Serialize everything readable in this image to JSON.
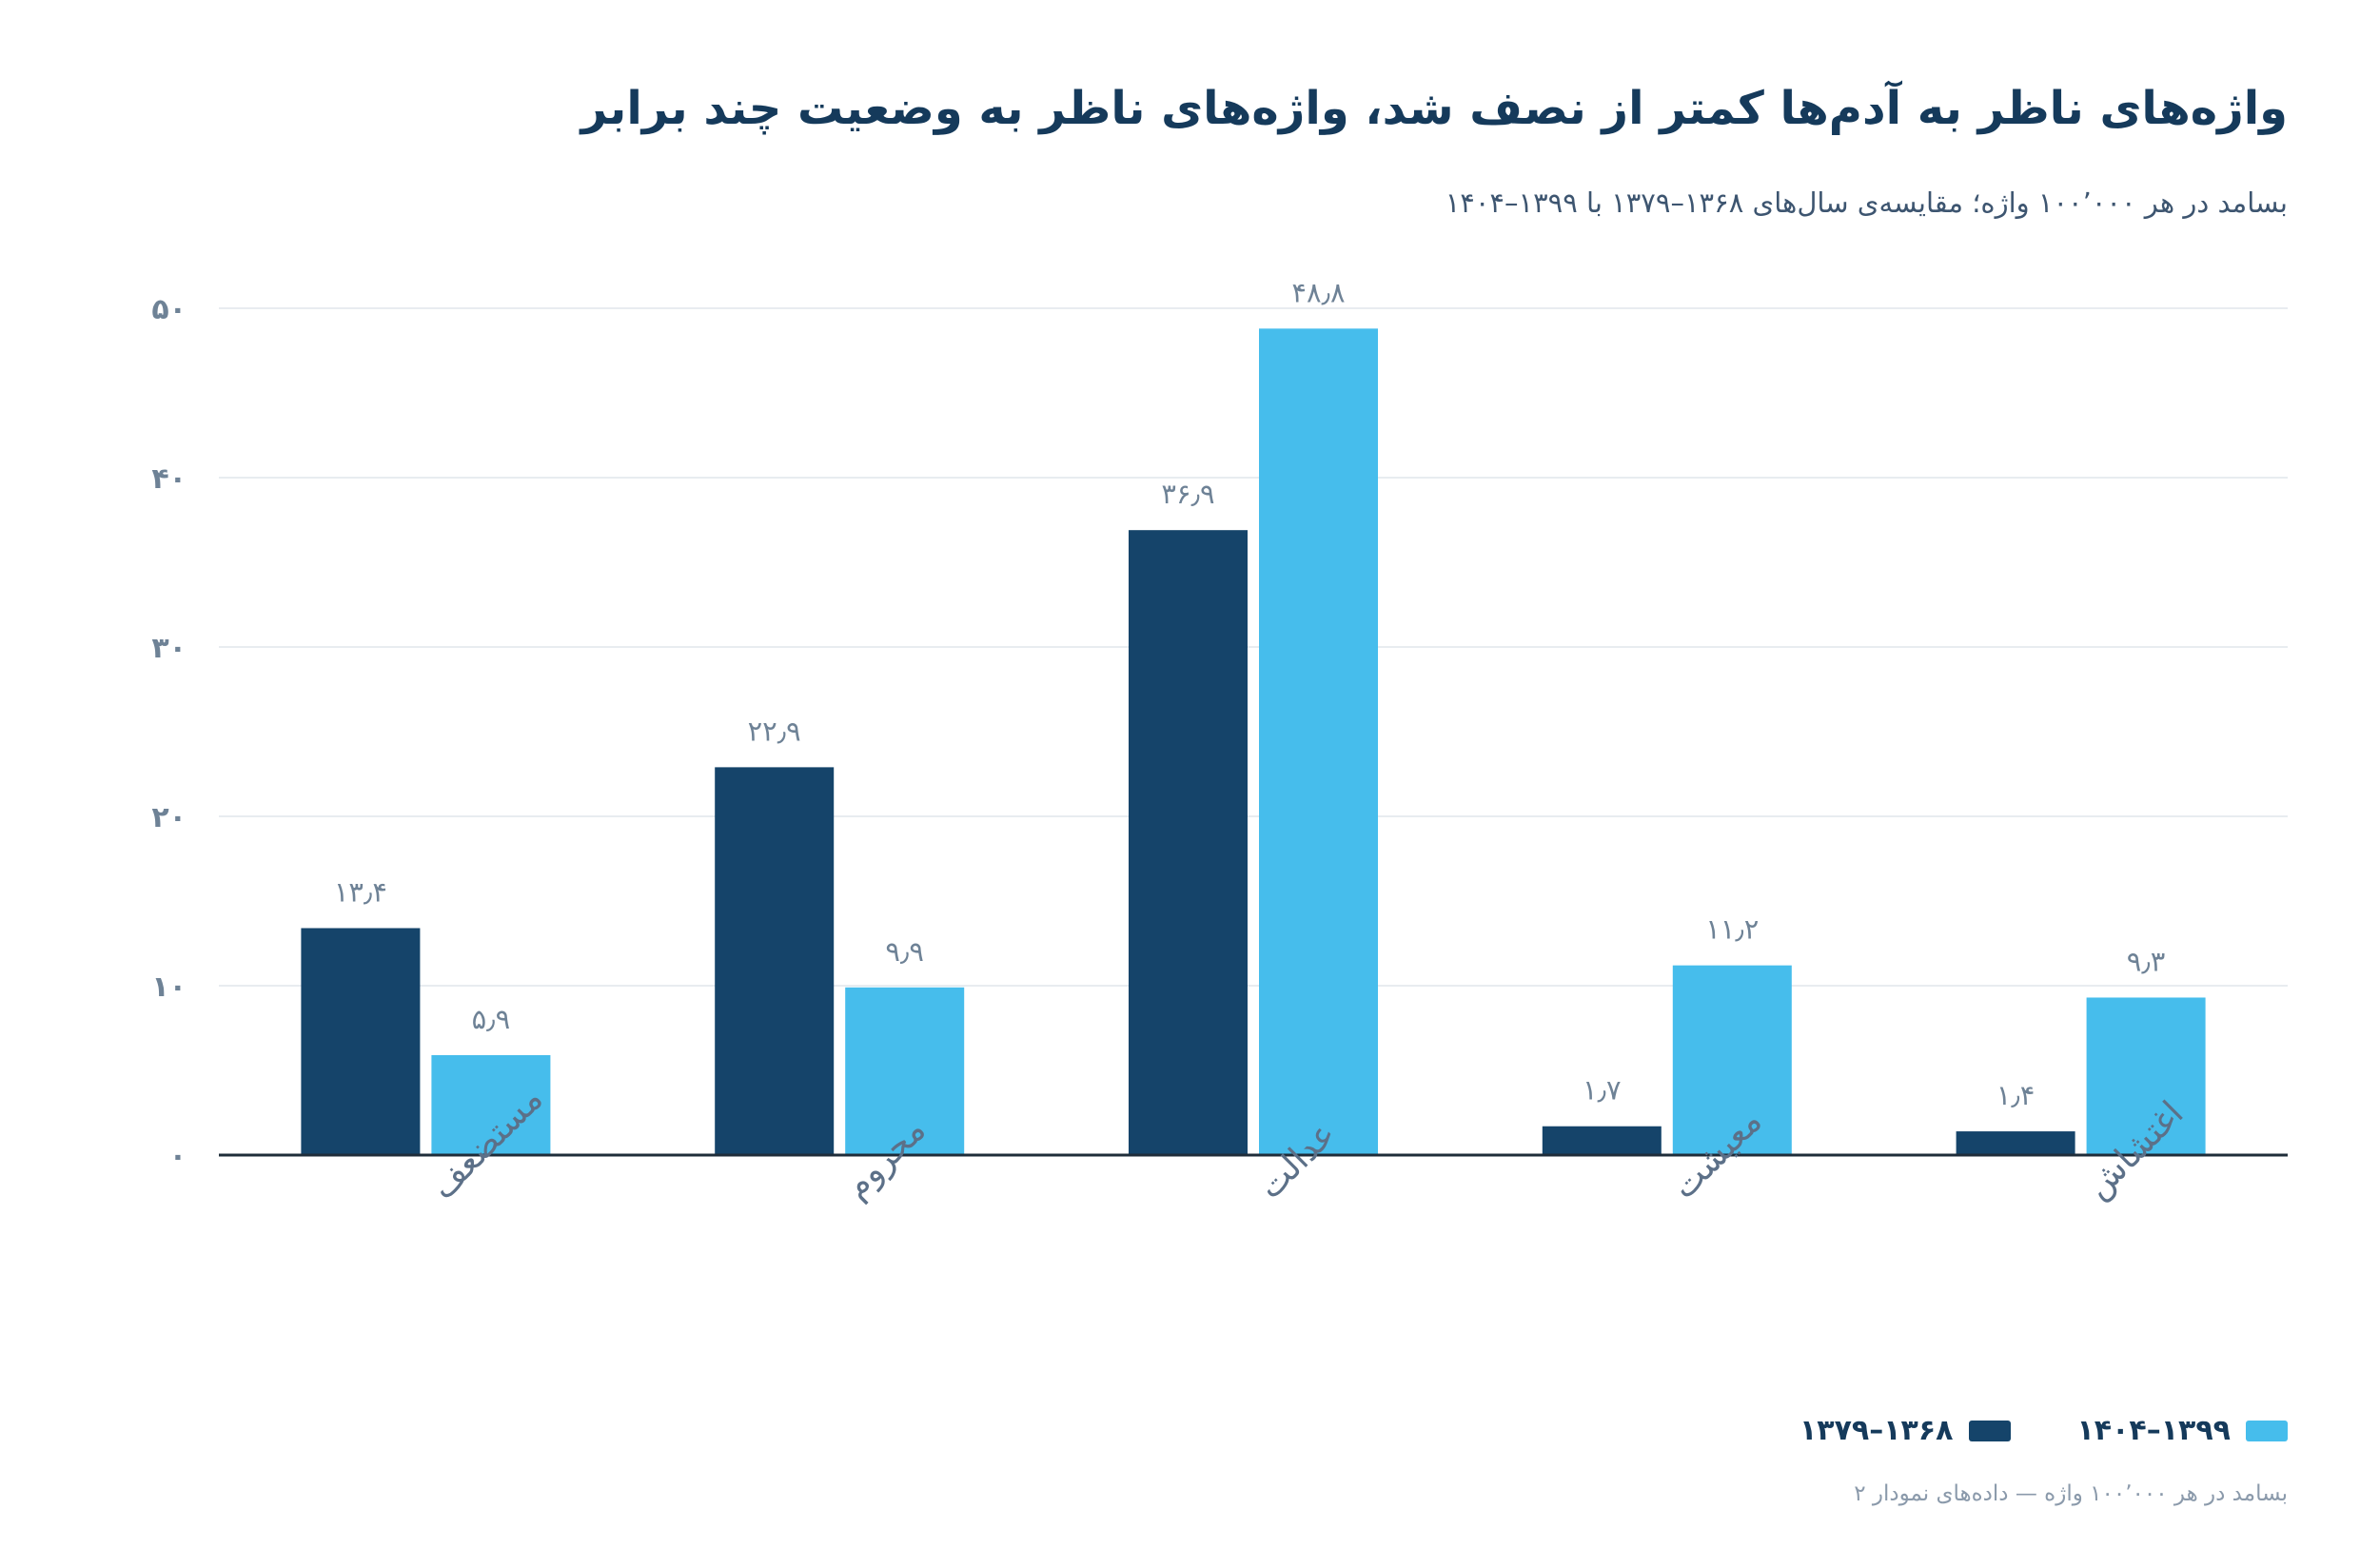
{
  "title": "واژه‌های ناظر به آدم‌ها کمتر از نصف شد، واژه‌های ناظر به وضعیت چند برابر",
  "subtitle": "بسامد در هر ۱۰۰٬۰۰۰ واژه؛ مقایسه‌ی سال‌های ۱۳۶۸–۱۳۷۹ با ۱۳۹۹–۱۴۰۴",
  "source_note": "بسامد در هر ۱۰۰٬۰۰۰ واژه — داده‌های نمودار ۲",
  "colors": {
    "series_dark": "#15446a",
    "series_light": "#46bdec",
    "gridline": "#e8ecf0",
    "baseline": "#1f2d3a"
  },
  "chart_data": {
    "type": "bar",
    "title": "واژه‌های ناظر به آدم‌ها کمتر از نصف شد، واژه‌های ناظر به وضعیت چند برابر",
    "subtitle": "بسامد در هر ۱۰۰٬۰۰۰ واژه؛ مقایسه‌ی سال‌های ۱۳۶۸–۱۳۷۹ با ۱۳۹۹–۱۴۰۴",
    "xlabel": "",
    "ylabel": "",
    "categories": [
      "مستضعف",
      "محروم",
      "عدالت",
      "معیشت",
      "اغتشاش"
    ],
    "series": [
      {
        "name": "۱۳۶۸–۱۳۷۹",
        "color": "#15446a",
        "values": [
          13.4,
          22.9,
          36.9,
          1.7,
          1.4
        ],
        "value_labels": [
          "۱۳٫۴",
          "۲۲٫۹",
          "۳۶٫۹",
          "۱٫۷",
          "۱٫۴"
        ]
      },
      {
        "name": "۱۳۹۹–۱۴۰۴",
        "color": "#46bdec",
        "values": [
          5.9,
          9.9,
          48.8,
          11.2,
          9.3
        ],
        "value_labels": [
          "۵٫۹",
          "۹٫۹",
          "۴۸٫۸",
          "۱۱٫۲",
          "۹٫۳"
        ]
      }
    ],
    "ylim": [
      0,
      50
    ],
    "yticks": [
      0,
      10,
      20,
      30,
      40,
      50
    ],
    "ytick_labels": [
      "۰",
      "۱۰",
      "۲۰",
      "۳۰",
      "۴۰",
      "۵۰"
    ],
    "grid": true,
    "legend": {
      "placement": "bottom-right",
      "order": [
        "۱۳۹۹–۱۴۰۴",
        "۱۳۶۸–۱۳۷۹"
      ]
    }
  }
}
